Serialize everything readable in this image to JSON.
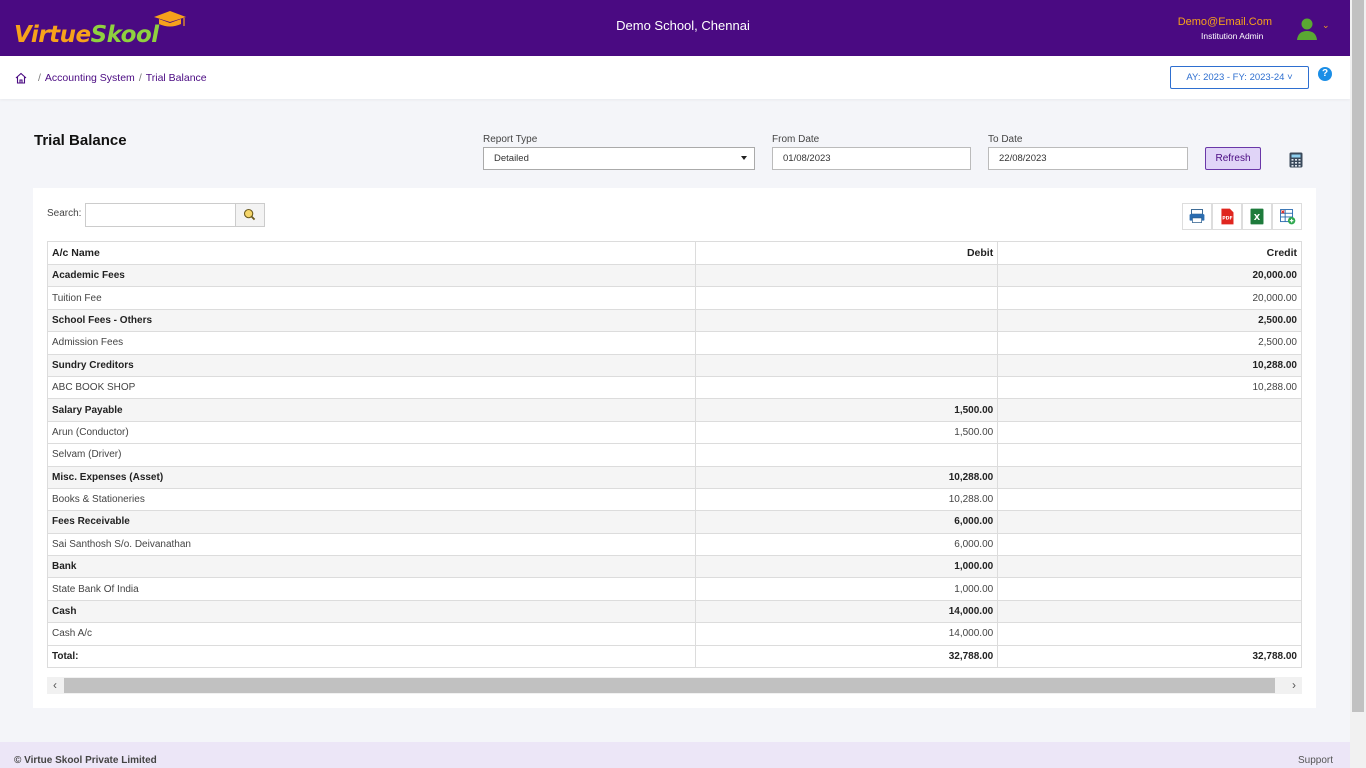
{
  "header": {
    "logo_text_1": "Virtue",
    "logo_text_2": "Sk",
    "logo_text_3": "ool",
    "school_name": "Demo School, Chennai",
    "user_email": "Demo@Email.Com",
    "user_role": "Institution Admin",
    "colors": {
      "bar": "#4a0a82",
      "accent": "#f7a21b",
      "green": "#8fd13f"
    }
  },
  "breadcrumb": {
    "items": [
      "Accounting System",
      "Trial Balance"
    ],
    "separator": "/"
  },
  "year_selector": {
    "label": "AY: 2023 - FY: 2023-24 ˅"
  },
  "help": {
    "label": "?"
  },
  "page": {
    "title": "Trial Balance"
  },
  "filters": {
    "report_type_label": "Report Type",
    "report_type_value": "Detailed",
    "from_date_label": "From Date",
    "from_date_value": "01/08/2023",
    "to_date_label": "To Date",
    "to_date_value": "22/08/2023",
    "refresh_label": "Refresh"
  },
  "search": {
    "label": "Search:",
    "value": ""
  },
  "table": {
    "headers": [
      "A/c Name",
      "Debit",
      "Credit"
    ],
    "rows": [
      {
        "type": "grp",
        "name": "Academic Fees",
        "debit": "",
        "credit": "20,000.00"
      },
      {
        "type": "leaf",
        "name": "Tuition Fee",
        "debit": "",
        "credit": "20,000.00"
      },
      {
        "type": "grp",
        "name": "School Fees - Others",
        "debit": "",
        "credit": "2,500.00"
      },
      {
        "type": "leaf",
        "name": "Admission Fees",
        "debit": "",
        "credit": "2,500.00"
      },
      {
        "type": "grp",
        "name": "Sundry Creditors",
        "debit": "",
        "credit": "10,288.00"
      },
      {
        "type": "leaf",
        "name": "ABC BOOK SHOP",
        "debit": "",
        "credit": "10,288.00"
      },
      {
        "type": "grp",
        "name": "Salary Payable",
        "debit": "1,500.00",
        "credit": ""
      },
      {
        "type": "leaf",
        "name": "Arun (Conductor)",
        "debit": "1,500.00",
        "credit": ""
      },
      {
        "type": "leaf",
        "name": "Selvam (Driver)",
        "debit": "",
        "credit": ""
      },
      {
        "type": "grp",
        "name": "Misc. Expenses (Asset)",
        "debit": "10,288.00",
        "credit": ""
      },
      {
        "type": "leaf",
        "name": "Books & Stationeries",
        "debit": "10,288.00",
        "credit": ""
      },
      {
        "type": "grp",
        "name": "Fees Receivable",
        "debit": "6,000.00",
        "credit": ""
      },
      {
        "type": "leaf",
        "name": "Sai Santhosh S/o. Deivanathan",
        "debit": "6,000.00",
        "credit": ""
      },
      {
        "type": "grp",
        "name": "Bank",
        "debit": "1,000.00",
        "credit": ""
      },
      {
        "type": "leaf",
        "name": "State Bank Of India",
        "debit": "1,000.00",
        "credit": ""
      },
      {
        "type": "grp",
        "name": "Cash",
        "debit": "14,000.00",
        "credit": ""
      },
      {
        "type": "leaf",
        "name": "Cash A/c",
        "debit": "14,000.00",
        "credit": ""
      }
    ],
    "total": {
      "name": "Total:",
      "debit": "32,788.00",
      "credit": "32,788.00"
    }
  },
  "footer": {
    "copyright": "© Virtue Skool Private Limited",
    "support": "Support"
  }
}
